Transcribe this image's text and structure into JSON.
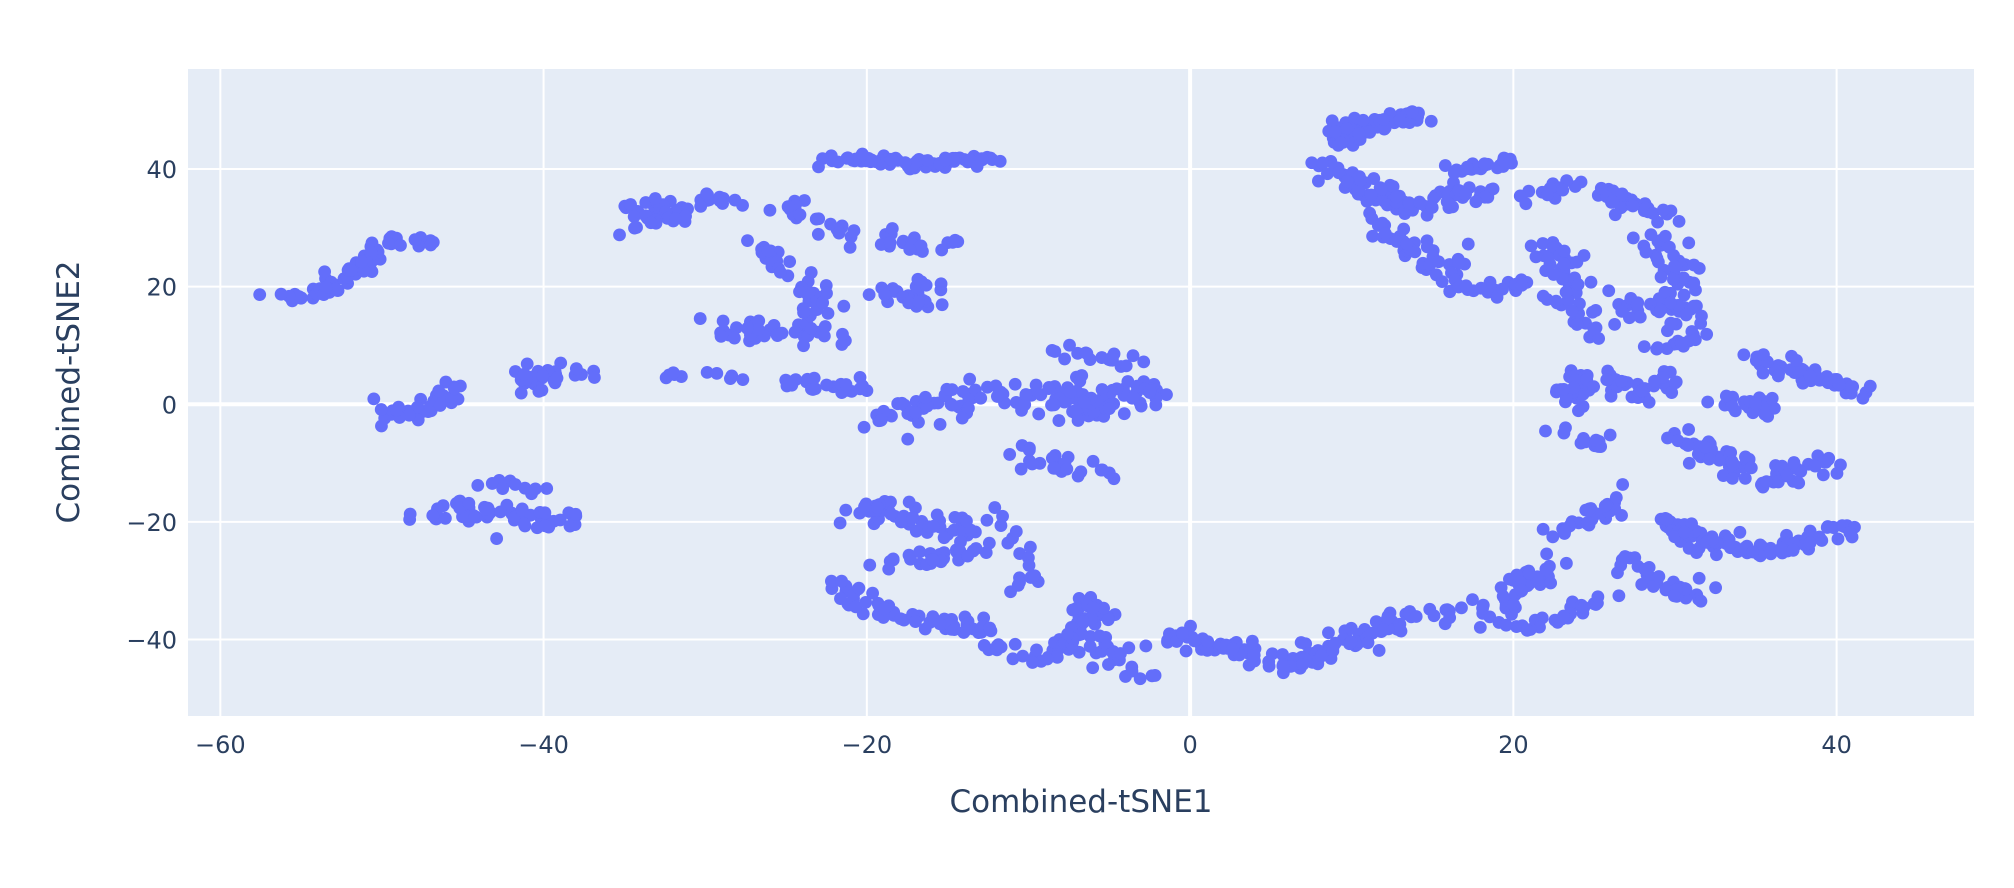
{
  "chart_data": {
    "type": "scatter",
    "title": "",
    "xlabel": "Combined-tSNE1",
    "ylabel": "Combined-tSNE2",
    "xlim": [
      -62,
      48.5
    ],
    "ylim": [
      -53,
      57
    ],
    "xticks": [
      -60,
      -40,
      -20,
      0,
      20,
      40
    ],
    "yticks": [
      -40,
      -20,
      0,
      20,
      40
    ],
    "xtick_labels": [
      "−60",
      "−40",
      "−20",
      "0",
      "20",
      "40"
    ],
    "ytick_labels": [
      "−40",
      "−20",
      "0",
      "20",
      "40"
    ],
    "grid": true,
    "legend": "none",
    "plot_background": "#e5ecf6",
    "marker_color": "#636efa",
    "clusters": [
      {
        "path": [
          [
            -56.5,
            18
          ],
          [
            -53.5,
            19
          ],
          [
            -52,
            22
          ],
          [
            -51,
            24
          ],
          [
            -50,
            27
          ],
          [
            -48,
            28
          ],
          [
            -46.5,
            28
          ]
        ],
        "n": 75,
        "spread": 0.9
      },
      {
        "path": [
          [
            -50.5,
            0
          ],
          [
            -48.5,
            -2
          ],
          [
            -47,
            0
          ],
          [
            -46,
            2.5
          ]
        ],
        "n": 40,
        "spread": 1.0
      },
      {
        "path": [
          [
            -48,
            -19
          ],
          [
            -46,
            -18
          ],
          [
            -44,
            -18
          ],
          [
            -42,
            -19
          ],
          [
            -40,
            -20
          ],
          [
            -38,
            -19
          ]
        ],
        "n": 55,
        "spread": 1.2
      },
      {
        "path": [
          [
            -44.5,
            -13
          ],
          [
            -42,
            -14
          ],
          [
            -40.5,
            -15
          ]
        ],
        "n": 10,
        "spread": 0.7
      },
      {
        "path": [
          [
            -41.5,
            3
          ],
          [
            -39.5,
            5
          ],
          [
            -37.5,
            4.5
          ]
        ],
        "n": 30,
        "spread": 1.2
      },
      {
        "path": [
          [
            -35,
            33
          ],
          [
            -32,
            33
          ],
          [
            -30,
            35
          ],
          [
            -28,
            36
          ]
        ],
        "n": 35,
        "spread": 1.1
      },
      {
        "path": [
          [
            -35,
            29
          ],
          [
            -33,
            31
          ],
          [
            -31,
            32
          ]
        ],
        "n": 12,
        "spread": 0.6
      },
      {
        "path": [
          [
            -33,
            5
          ],
          [
            -30,
            5
          ],
          [
            -28,
            4
          ]
        ],
        "n": 10,
        "spread": 0.6
      },
      {
        "path": [
          [
            -30,
            13
          ],
          [
            -28,
            12
          ],
          [
            -26,
            13
          ],
          [
            -24,
            12
          ],
          [
            -22,
            11
          ]
        ],
        "n": 35,
        "spread": 1.1
      },
      {
        "path": [
          [
            -27,
            28
          ],
          [
            -25,
            24
          ],
          [
            -24,
            20
          ],
          [
            -23,
            16
          ],
          [
            -23,
            12
          ]
        ],
        "n": 40,
        "spread": 1.2
      },
      {
        "path": [
          [
            -26.5,
            33
          ],
          [
            -24,
            33
          ],
          [
            -22,
            30
          ],
          [
            -21,
            28
          ]
        ],
        "n": 22,
        "spread": 1.0
      },
      {
        "path": [
          [
            -23.5,
            41
          ],
          [
            -21,
            42
          ],
          [
            -18,
            41
          ],
          [
            -15,
            41
          ],
          [
            -12,
            42
          ]
        ],
        "n": 75,
        "spread": 0.8
      },
      {
        "path": [
          [
            -25,
            4
          ],
          [
            -23,
            3
          ],
          [
            -21,
            3
          ],
          [
            -20,
            2
          ]
        ],
        "n": 25,
        "spread": 1.0
      },
      {
        "path": [
          [
            -20,
            20
          ],
          [
            -18,
            19
          ],
          [
            -17,
            17
          ],
          [
            -16,
            21
          ]
        ],
        "n": 25,
        "spread": 1.0
      },
      {
        "path": [
          [
            -18.5,
            28
          ],
          [
            -16,
            27
          ],
          [
            -14,
            28
          ]
        ],
        "n": 22,
        "spread": 0.9
      },
      {
        "path": [
          [
            -19,
            -2
          ],
          [
            -16,
            0
          ],
          [
            -13,
            2
          ],
          [
            -10,
            0
          ],
          [
            -8,
            2
          ],
          [
            -6,
            -1
          ],
          [
            -4,
            2
          ],
          [
            -2,
            0
          ]
        ],
        "n": 140,
        "spread": 1.8
      },
      {
        "path": [
          [
            -11,
            -8
          ],
          [
            -9,
            -10
          ],
          [
            -7,
            -12
          ],
          [
            -5,
            -11
          ]
        ],
        "n": 25,
        "spread": 1.1
      },
      {
        "path": [
          [
            -8,
            9
          ],
          [
            -5,
            8
          ],
          [
            -3,
            7
          ]
        ],
        "n": 18,
        "spread": 0.8
      },
      {
        "path": [
          [
            -21,
            -19
          ],
          [
            -19,
            -17
          ],
          [
            -17,
            -20
          ],
          [
            -15,
            -20
          ],
          [
            -13,
            -22
          ]
        ],
        "n": 50,
        "spread": 1.4
      },
      {
        "path": [
          [
            -19,
            -26
          ],
          [
            -17,
            -27
          ],
          [
            -15,
            -26
          ],
          [
            -13,
            -25
          ]
        ],
        "n": 30,
        "spread": 1.1
      },
      {
        "path": [
          [
            -12,
            -18
          ],
          [
            -11,
            -22
          ],
          [
            -10,
            -28
          ],
          [
            -11,
            -32
          ]
        ],
        "n": 20,
        "spread": 1.0
      },
      {
        "path": [
          [
            -22,
            -31
          ],
          [
            -20,
            -33
          ],
          [
            -18,
            -36
          ],
          [
            -16,
            -37
          ],
          [
            -14,
            -38
          ],
          [
            -12,
            -38
          ]
        ],
        "n": 55,
        "spread": 1.3
      },
      {
        "path": [
          [
            -13,
            -40
          ],
          [
            -11,
            -42
          ],
          [
            -9,
            -43
          ],
          [
            -7,
            -40
          ],
          [
            -6,
            -34
          ],
          [
            -5,
            -44
          ],
          [
            -3,
            -45
          ]
        ],
        "n": 90,
        "spread": 1.4
      },
      {
        "path": [
          [
            -2,
            -40
          ],
          [
            0,
            -40
          ],
          [
            2,
            -41
          ],
          [
            4,
            -43
          ],
          [
            6,
            -44
          ],
          [
            8,
            -42
          ],
          [
            10,
            -40
          ],
          [
            12,
            -38
          ],
          [
            14,
            -36
          ]
        ],
        "n": 120,
        "spread": 1.3
      },
      {
        "path": [
          [
            15,
            -35
          ],
          [
            17,
            -36
          ],
          [
            19,
            -34
          ],
          [
            21,
            -30
          ],
          [
            22,
            -27
          ]
        ],
        "n": 50,
        "spread": 1.3
      },
      {
        "path": [
          [
            20,
            -39
          ],
          [
            22,
            -37
          ],
          [
            24,
            -35
          ],
          [
            26,
            -33
          ]
        ],
        "n": 25,
        "spread": 1.0
      },
      {
        "path": [
          [
            22,
            -22
          ],
          [
            24,
            -20
          ],
          [
            26,
            -17
          ],
          [
            27,
            -16
          ]
        ],
        "n": 28,
        "spread": 1.0
      },
      {
        "path": [
          [
            27,
            -26
          ],
          [
            28,
            -29
          ],
          [
            30,
            -31
          ],
          [
            32,
            -32
          ]
        ],
        "n": 35,
        "spread": 1.1
      },
      {
        "path": [
          [
            29,
            -20
          ],
          [
            31,
            -22
          ],
          [
            33,
            -24
          ],
          [
            35,
            -25
          ],
          [
            37,
            -24
          ],
          [
            39,
            -22
          ],
          [
            41,
            -21
          ]
        ],
        "n": 95,
        "spread": 1.2
      },
      {
        "path": [
          [
            30,
            -5
          ],
          [
            32,
            -8
          ],
          [
            34,
            -11
          ],
          [
            36,
            -13
          ],
          [
            38,
            -11
          ],
          [
            40,
            -9
          ]
        ],
        "n": 75,
        "spread": 1.2
      },
      {
        "path": [
          [
            33,
            0
          ],
          [
            35,
            -1
          ],
          [
            36,
            1
          ]
        ],
        "n": 22,
        "spread": 0.9
      },
      {
        "path": [
          [
            34,
            7
          ],
          [
            36,
            7
          ],
          [
            38,
            5
          ],
          [
            40,
            3
          ],
          [
            42,
            2
          ]
        ],
        "n": 45,
        "spread": 1.1
      },
      {
        "path": [
          [
            23,
            0
          ],
          [
            24,
            5
          ],
          [
            26,
            4
          ],
          [
            28,
            2
          ],
          [
            30,
            5
          ]
        ],
        "n": 55,
        "spread": 1.3
      },
      {
        "path": [
          [
            23,
            -5
          ],
          [
            25,
            -7
          ],
          [
            26,
            -6
          ]
        ],
        "n": 12,
        "spread": 0.8
      },
      {
        "path": [
          [
            22,
            28
          ],
          [
            23,
            22
          ],
          [
            24,
            16
          ],
          [
            25,
            12
          ]
        ],
        "n": 55,
        "spread": 1.3
      },
      {
        "path": [
          [
            26,
            18
          ],
          [
            28,
            16
          ],
          [
            30,
            18
          ],
          [
            31,
            12
          ],
          [
            29,
            10
          ]
        ],
        "n": 55,
        "spread": 1.3
      },
      {
        "path": [
          [
            27,
            26
          ],
          [
            29,
            28
          ],
          [
            30,
            24
          ],
          [
            30.5,
            20
          ]
        ],
        "n": 30,
        "spread": 1.1
      },
      {
        "path": [
          [
            20,
            35
          ],
          [
            22,
            36
          ],
          [
            24,
            37
          ],
          [
            26,
            36
          ],
          [
            28,
            33
          ],
          [
            29.5,
            32
          ]
        ],
        "n": 50,
        "spread": 1.1
      },
      {
        "path": [
          [
            8,
            41
          ],
          [
            10,
            38
          ],
          [
            12,
            35
          ],
          [
            15,
            34
          ],
          [
            17,
            36
          ],
          [
            19,
            36
          ]
        ],
        "n": 80,
        "spread": 1.2
      },
      {
        "path": [
          [
            9,
            44
          ],
          [
            10,
            47
          ],
          [
            12,
            48
          ],
          [
            14,
            49
          ]
        ],
        "n": 70,
        "spread": 1.0
      },
      {
        "path": [
          [
            11,
            31
          ],
          [
            13,
            28
          ],
          [
            15,
            25
          ],
          [
            17,
            22
          ]
        ],
        "n": 40,
        "spread": 1.2
      },
      {
        "path": [
          [
            16,
            20
          ],
          [
            18,
            19
          ],
          [
            20,
            20
          ],
          [
            21,
            21
          ]
        ],
        "n": 25,
        "spread": 0.9
      },
      {
        "path": [
          [
            16,
            40
          ],
          [
            18,
            40
          ],
          [
            20,
            41
          ]
        ],
        "n": 22,
        "spread": 0.7
      }
    ]
  }
}
